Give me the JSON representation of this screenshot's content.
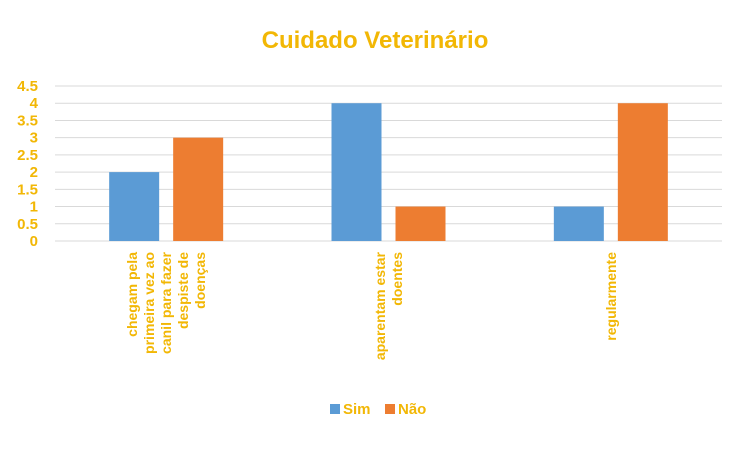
{
  "chart_data": {
    "type": "bar",
    "title": "Cuidado Veterinário",
    "categories": [
      [
        "chegam pela",
        "primeira vez ao",
        "canil para fazer",
        "despiste de",
        "doenças"
      ],
      [
        "aparentam estar",
        "doentes"
      ],
      [
        "regularmente"
      ]
    ],
    "series": [
      {
        "name": "Sim",
        "values": [
          2,
          4,
          1
        ],
        "color": "#5b9bd5"
      },
      {
        "name": "Não",
        "values": [
          3,
          1,
          4
        ],
        "color": "#ed7d31"
      }
    ],
    "ylim": [
      0,
      4.5
    ],
    "yticks": [
      "0",
      "0.5",
      "1",
      "1.5",
      "2",
      "2.5",
      "3",
      "3.5",
      "4",
      "4.5"
    ],
    "grid": true,
    "legend_position": "bottom",
    "text_color": "#f2b705"
  }
}
